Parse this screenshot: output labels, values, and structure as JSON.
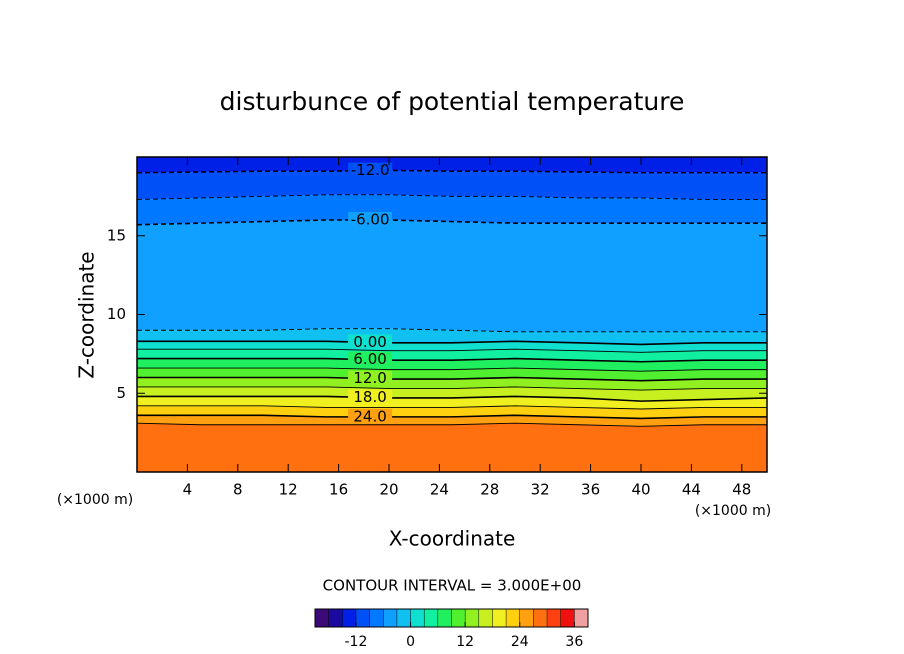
{
  "chart_data": {
    "type": "contour",
    "title": "disturbunce of potential temperature",
    "xlabel": "X-coordinate",
    "ylabel": "Z-coordinate",
    "unit_labels": [
      "(×1000 m)",
      "(×1000 m)"
    ],
    "xlim": [
      0,
      50
    ],
    "xticks": [
      4,
      8,
      12,
      16,
      20,
      24,
      28,
      32,
      36,
      40,
      44,
      48
    ],
    "ylim": [
      0,
      20
    ],
    "yticks": [
      5,
      10,
      15
    ],
    "negative_dashed": true,
    "x": [
      0,
      5,
      10,
      15,
      20,
      25,
      30,
      35,
      40,
      45,
      50
    ],
    "contours": [
      {
        "level": -12,
        "label": "-12.0",
        "z": [
          19.0,
          19.05,
          19.1,
          19.1,
          19.15,
          19.1,
          19.1,
          19.05,
          19.0,
          19.0,
          19.0
        ]
      },
      {
        "level": -9,
        "z": [
          17.3,
          17.4,
          17.5,
          17.6,
          17.6,
          17.5,
          17.5,
          17.4,
          17.4,
          17.3,
          17.3
        ]
      },
      {
        "level": -6,
        "label": "-6.00",
        "z": [
          15.7,
          15.8,
          15.9,
          16.0,
          16.0,
          15.9,
          15.8,
          15.8,
          15.8,
          15.8,
          15.8
        ]
      },
      {
        "level": -3,
        "z": [
          9.0,
          9.0,
          9.0,
          9.1,
          9.1,
          9.0,
          8.9,
          8.9,
          8.9,
          8.9,
          8.9
        ]
      },
      {
        "level": 0,
        "label": "0.00",
        "z": [
          8.3,
          8.3,
          8.3,
          8.3,
          8.2,
          8.2,
          8.3,
          8.2,
          8.1,
          8.2,
          8.2
        ]
      },
      {
        "level": 3,
        "z": [
          7.8,
          7.8,
          7.8,
          7.8,
          7.7,
          7.7,
          7.8,
          7.7,
          7.6,
          7.7,
          7.7
        ]
      },
      {
        "level": 6,
        "label": "6.00",
        "z": [
          7.2,
          7.2,
          7.2,
          7.2,
          7.1,
          7.1,
          7.2,
          7.1,
          7.0,
          7.1,
          7.1
        ]
      },
      {
        "level": 9,
        "z": [
          6.6,
          6.6,
          6.6,
          6.6,
          6.5,
          6.5,
          6.6,
          6.5,
          6.4,
          6.5,
          6.5
        ]
      },
      {
        "level": 12,
        "label": "12.0",
        "z": [
          6.0,
          6.0,
          6.0,
          6.0,
          5.9,
          5.9,
          6.0,
          5.9,
          5.8,
          5.9,
          5.9
        ]
      },
      {
        "level": 15,
        "z": [
          5.4,
          5.4,
          5.4,
          5.4,
          5.3,
          5.3,
          5.4,
          5.3,
          5.2,
          5.3,
          5.3
        ]
      },
      {
        "level": 18,
        "label": "18.0",
        "z": [
          4.8,
          4.8,
          4.8,
          4.8,
          4.7,
          4.7,
          4.8,
          4.7,
          4.5,
          4.6,
          4.7
        ]
      },
      {
        "level": 21,
        "z": [
          4.2,
          4.2,
          4.2,
          4.1,
          4.1,
          4.1,
          4.2,
          4.1,
          4.0,
          4.1,
          4.1
        ]
      },
      {
        "level": 24,
        "label": "24.0",
        "z": [
          3.6,
          3.6,
          3.6,
          3.5,
          3.5,
          3.5,
          3.6,
          3.5,
          3.4,
          3.5,
          3.5
        ]
      },
      {
        "level": 27,
        "z": [
          3.1,
          3.0,
          3.0,
          3.0,
          3.0,
          3.0,
          3.1,
          3.0,
          2.9,
          3.0,
          3.0
        ]
      }
    ],
    "contour_interval_text": "CONTOUR INTERVAL = 3.000E+00",
    "colorbar": {
      "lim": [
        -21,
        39
      ],
      "ticks": [
        -12,
        0,
        12,
        24,
        36
      ],
      "colors": [
        "#3c0a78",
        "#1a0aa0",
        "#0020e8",
        "#0050f8",
        "#0078ff",
        "#10a0ff",
        "#10c0f0",
        "#10e0d0",
        "#10f0a0",
        "#20f060",
        "#50f030",
        "#90f020",
        "#c8f020",
        "#f0f020",
        "#ffd010",
        "#ffa010",
        "#ff7010",
        "#ff4010",
        "#f01010",
        "#f0a0a0"
      ]
    }
  }
}
